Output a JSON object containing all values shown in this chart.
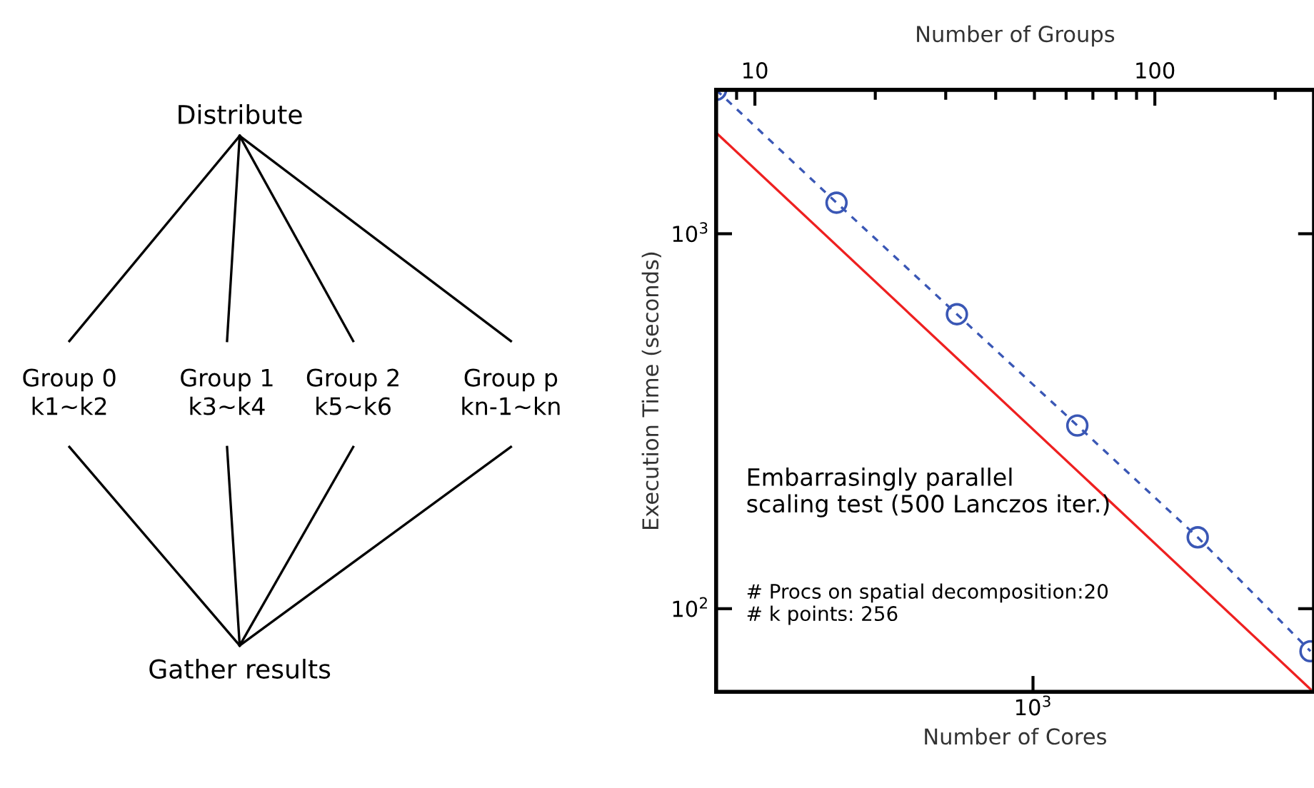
{
  "chart_data": [
    {
      "type": "other",
      "annotations": [
        "Distribute",
        "Group 0\nk1~k2",
        "Group 1\nk3~k4",
        "Group 2\nk5~k6",
        "Group p\nkn-1~kn",
        "Gather results"
      ]
    },
    {
      "type": "line",
      "xlabel": "Number of Groups",
      "ylabel": "Execution Time (seconds)",
      "x2label": "Number of Cores",
      "log": "xy",
      "xlim": [
        8,
        250
      ],
      "ylim": [
        60,
        2420
      ],
      "xticks": [
        10,
        100
      ],
      "yticks": [
        {
          "value": 100,
          "label": "10$^{2}$"
        },
        {
          "value": 1000,
          "label": "10$^{3}$"
        }
      ],
      "grid": false,
      "legend": false,
      "series": [
        {
          "color": "#3a57b5",
          "x": [
            8,
            16,
            32,
            64,
            128,
            245
          ],
          "values": [
            2420,
            1210,
            610,
            308,
            155,
            77
          ],
          "marker": "circle",
          "line_style": "dashed"
        },
        {
          "color": "#ee2020",
          "x": [
            8,
            245
          ],
          "values": [
            1860,
            61
          ],
          "marker": "none",
          "line_style": "solid"
        }
      ],
      "annotations": [
        "10$^{3}$",
        "Embarrasingly parallel\nscaling test (500 Lanczos iter.)",
        "# Procs on spatial decomposition:20\n# k points: 256"
      ]
    }
  ]
}
